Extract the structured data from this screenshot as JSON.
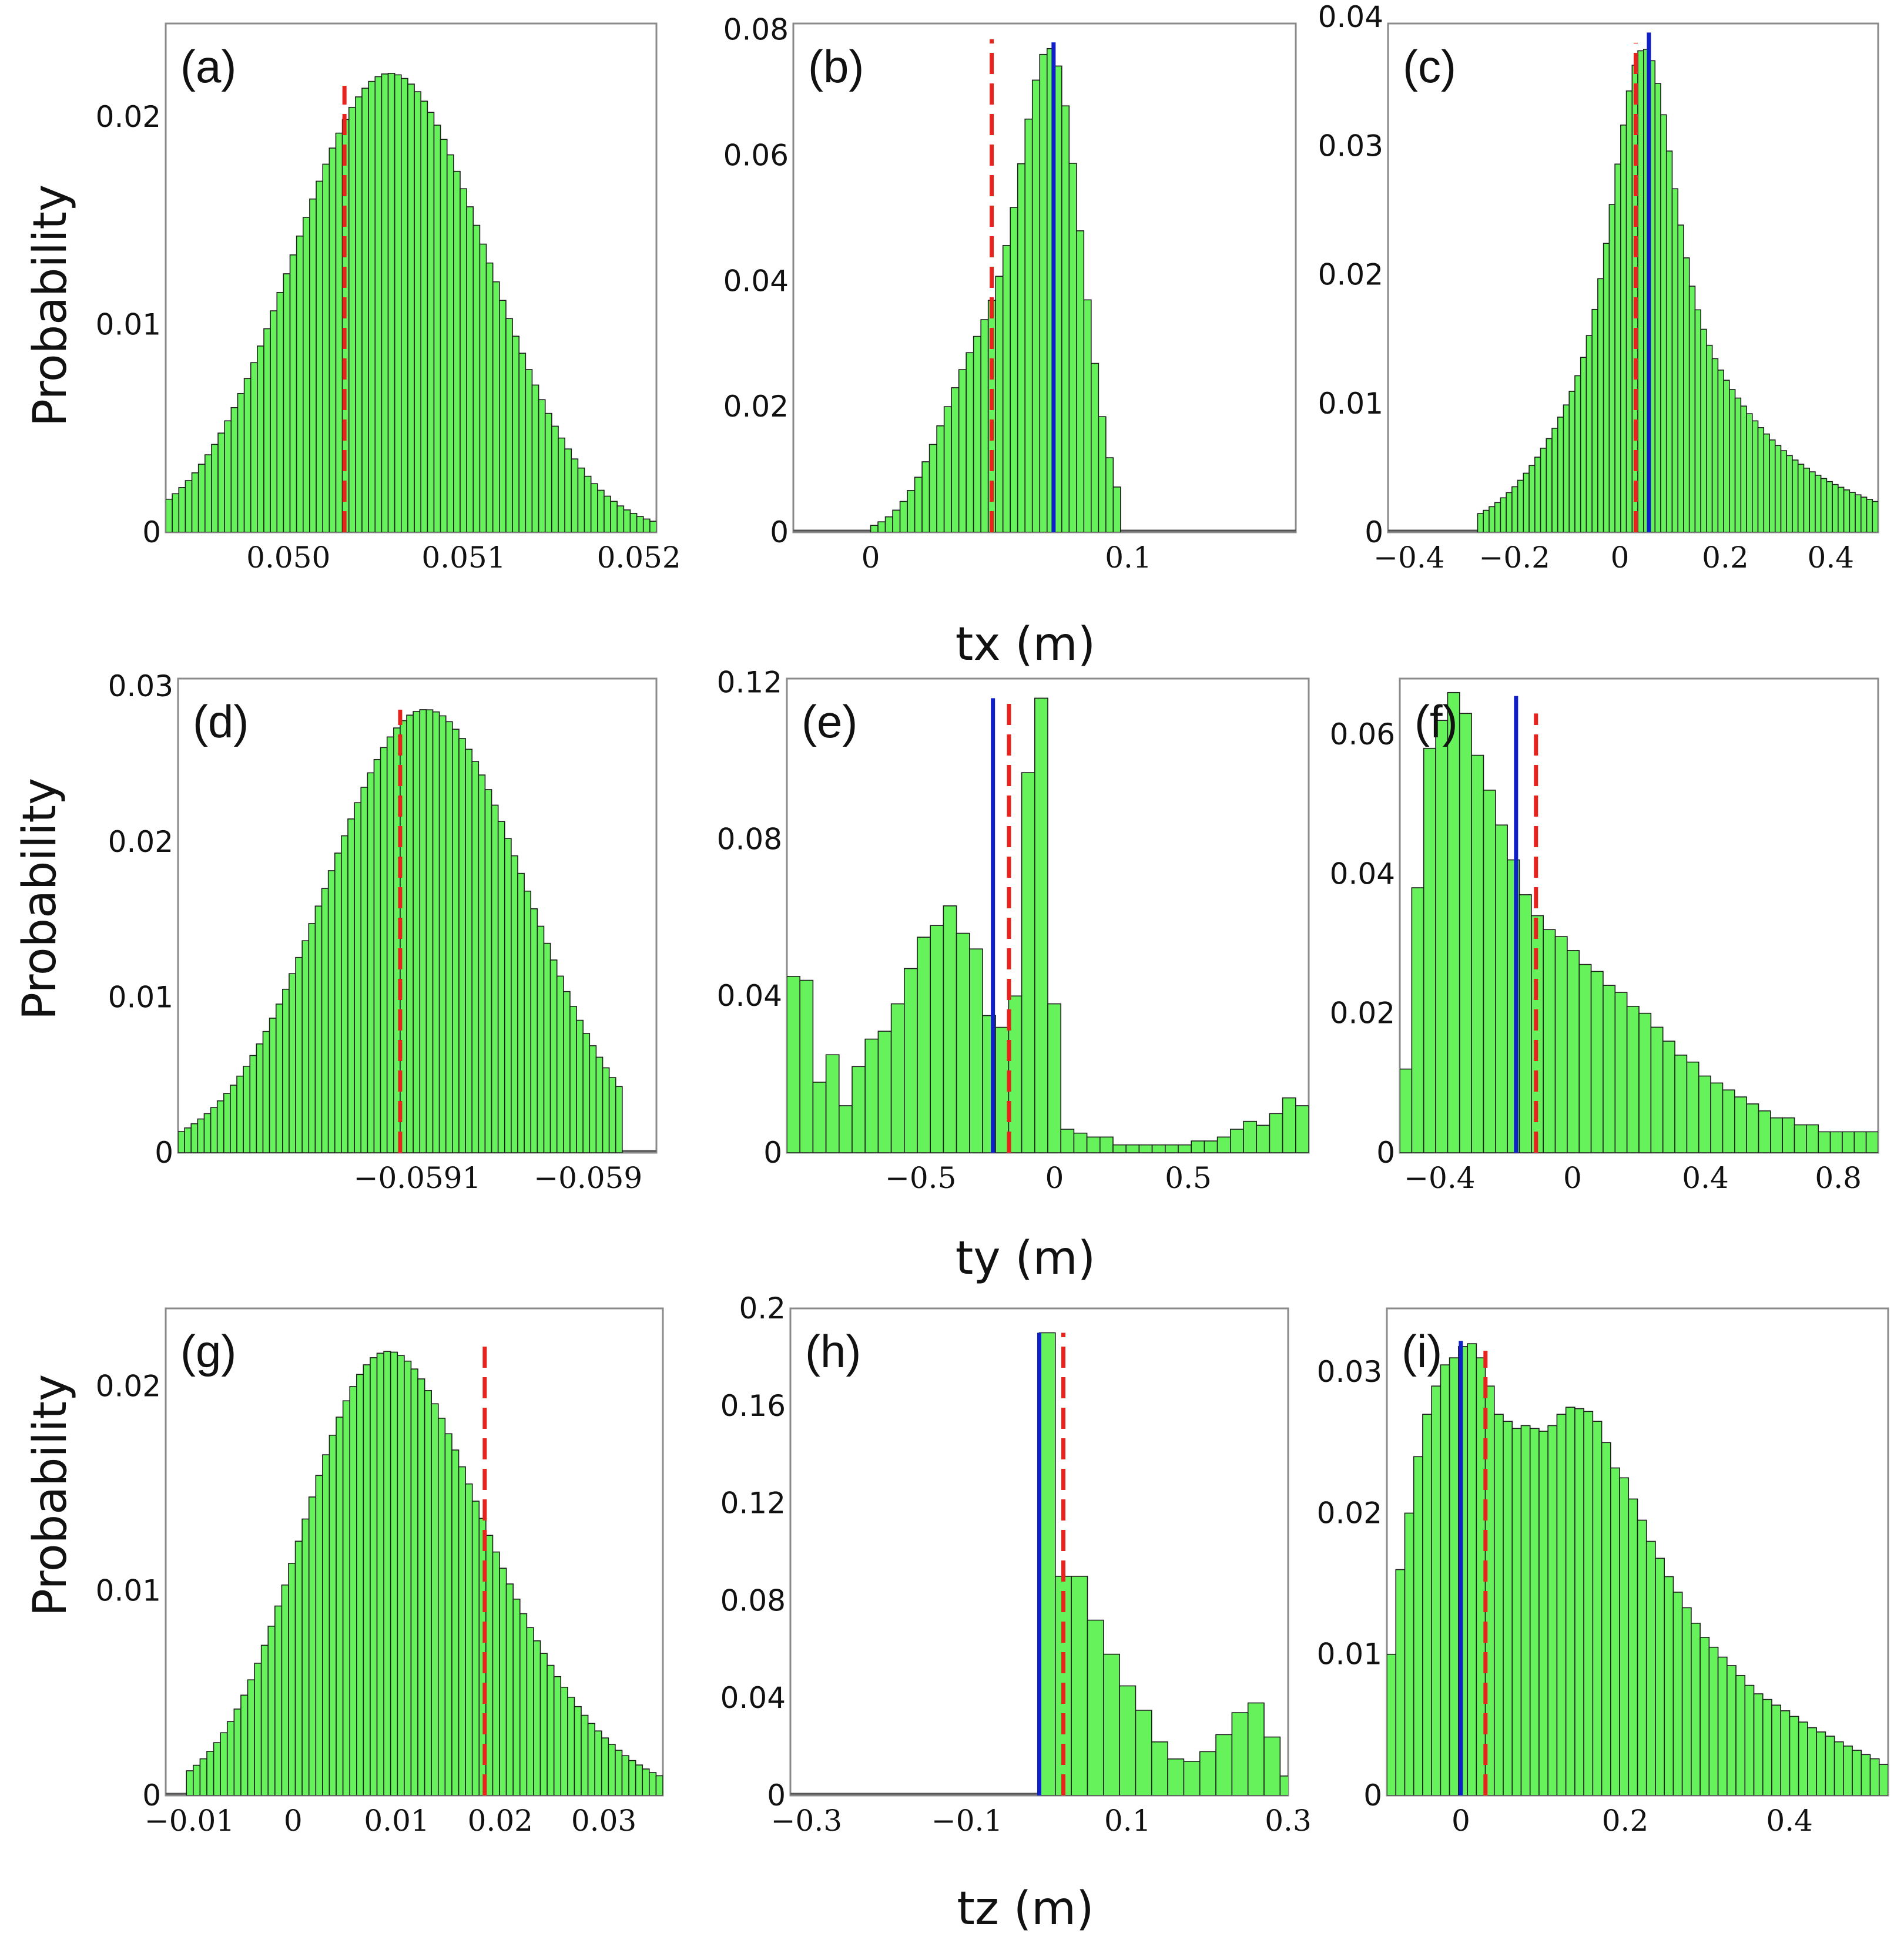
{
  "figure": {
    "y_axis_label": "Probability",
    "row_xlabels": [
      "tx (m)",
      "ty (m)",
      "tz (m)"
    ]
  },
  "colors": {
    "bar_fill": "#66f25a",
    "bar_edge": "#1d1d1d",
    "red_dashed": "#e8231d",
    "blue_solid": "#1020c8"
  },
  "chart_data": [
    {
      "id": "a",
      "type": "bar",
      "label": "(a)",
      "variable": "tx",
      "xlim": [
        0.0493,
        0.0521
      ],
      "ylim": [
        0,
        0.0245
      ],
      "xticks": [
        0.05,
        0.051,
        0.052
      ],
      "xtick_labels": [
        "0.050",
        "0.051",
        "0.052"
      ],
      "yticks": [
        0,
        0.01,
        0.02
      ],
      "ytick_labels": [
        "0",
        "0.01",
        "0.02"
      ],
      "bins": 75,
      "shape": [
        {
          "components": [
            {
              "mu": 0.05058,
              "sigma": 0.00055,
              "w": 1
            }
          ],
          "scale": 0.0221,
          "floor": 0.0005
        }
      ],
      "red_dashed_x": 0.05032,
      "red_top": 0.0215,
      "blue_solid_x": null
    },
    {
      "id": "b",
      "type": "bar",
      "label": "(b)",
      "variable": "tx",
      "xlim": [
        -0.03,
        0.165
      ],
      "ylim": [
        0,
        0.081
      ],
      "xticks": [
        0,
        0.1
      ],
      "xtick_labels": [
        "0",
        "0.1"
      ],
      "yticks": [
        0,
        0.02,
        0.04,
        0.06,
        0.08
      ],
      "ytick_labels": [
        "0",
        "0.02",
        "0.04",
        "0.06",
        "0.08"
      ],
      "bins": 34,
      "support": [
        0.0,
        0.097
      ],
      "shape": [
        {
          "components": [
            {
              "mu": 0.071,
              "sigma": 0.0115,
              "w": 0.8
            },
            {
              "mu": 0.045,
              "sigma": 0.017,
              "w": 0.35
            }
          ],
          "scale": 0.077,
          "floor": 0.0
        }
      ],
      "red_dashed_x": 0.047,
      "red_top": 0.0785,
      "blue_solid_x": 0.071,
      "blue_top": 0.078
    },
    {
      "id": "c",
      "type": "bar",
      "label": "(c)",
      "variable": "tx",
      "xlim": [
        -0.44,
        0.49
      ],
      "ylim": [
        0,
        0.0395
      ],
      "xticks": [
        -0.4,
        -0.2,
        0,
        0.2,
        0.4
      ],
      "xtick_labels": [
        "−0.4",
        "−0.2",
        "0",
        "0.2",
        "0.4"
      ],
      "yticks": [
        0,
        0.01,
        0.02,
        0.03,
        0.04
      ],
      "ytick_labels": [
        "0",
        "0.01",
        "0.02",
        "0.03",
        "0.04"
      ],
      "bins": 70,
      "support": [
        -0.27,
        0.49
      ],
      "shape": [
        {
          "components": [
            {
              "mu": 0.045,
              "sigma": 0.05,
              "w": 0.8
            },
            {
              "mu": 0.04,
              "sigma": 0.13,
              "w": 0.55
            },
            {
              "mu": 0.2,
              "sigma": 0.22,
              "w": 0.22
            }
          ],
          "scale": 0.0375,
          "floor": 0.0
        }
      ],
      "red_dashed_x": 0.03,
      "red_top": 0.038,
      "blue_solid_x": 0.055,
      "blue_top": 0.0388
    },
    {
      "id": "d",
      "type": "bar",
      "label": "(d)",
      "variable": "ty",
      "xlim": [
        -0.05924,
        -0.05896
      ],
      "ylim": [
        0,
        0.0305
      ],
      "xticks": [
        -0.0591,
        -0.059
      ],
      "xtick_labels": [
        "−0.0591",
        "−0.059"
      ],
      "yticks": [
        0,
        0.01,
        0.02,
        0.03
      ],
      "ytick_labels": [
        "0",
        "0.01",
        "0.02",
        "0.03"
      ],
      "bins": 68,
      "support": [
        -0.05924,
        -0.05898
      ],
      "shape": [
        {
          "components": [
            {
              "mu": -0.059095,
              "sigma": 5.8e-05,
              "w": 1
            }
          ],
          "scale": 0.0285,
          "floor": 0.0005
        }
      ],
      "red_dashed_x": -0.05911,
      "red_top": 0.0285,
      "blue_solid_x": null
    },
    {
      "id": "e",
      "type": "bar",
      "label": "(e)",
      "variable": "ty",
      "xlim": [
        -1.0,
        0.95
      ],
      "ylim": [
        0,
        0.121
      ],
      "xticks": [
        -0.5,
        0,
        0.5
      ],
      "xtick_labels": [
        "−0.5",
        "0",
        "0.5"
      ],
      "yticks": [
        0,
        0.04,
        0.08,
        0.12
      ],
      "ytick_labels": [
        "0",
        "0.04",
        "0.08",
        "0.12"
      ],
      "bin_values": [
        0.045,
        0.044,
        0.018,
        0.025,
        0.012,
        0.022,
        0.029,
        0.031,
        0.038,
        0.047,
        0.055,
        0.058,
        0.063,
        0.056,
        0.052,
        0.035,
        0.032,
        0.04,
        0.097,
        0.116,
        0.038,
        0.006,
        0.005,
        0.004,
        0.004,
        0.002,
        0.002,
        0.002,
        0.002,
        0.002,
        0.002,
        0.003,
        0.003,
        0.004,
        0.006,
        0.008,
        0.007,
        0.01,
        0.014,
        0.012
      ],
      "red_dashed_x": -0.17,
      "red_top": 0.115,
      "blue_solid_x": -0.23,
      "blue_top": 0.116
    },
    {
      "id": "f",
      "type": "bar",
      "label": "(f)",
      "variable": "ty",
      "xlim": [
        -0.52,
        0.92
      ],
      "ylim": [
        0,
        0.068
      ],
      "xticks": [
        -0.4,
        0,
        0.4,
        0.8
      ],
      "xtick_labels": [
        "−0.4",
        "0",
        "0.4",
        "0.8"
      ],
      "yticks": [
        0,
        0.02,
        0.04,
        0.06
      ],
      "ytick_labels": [
        "0",
        "0.02",
        "0.04",
        "0.06"
      ],
      "bin_values": [
        0.012,
        0.038,
        0.058,
        0.062,
        0.066,
        0.063,
        0.057,
        0.052,
        0.047,
        0.042,
        0.037,
        0.034,
        0.032,
        0.031,
        0.029,
        0.027,
        0.026,
        0.024,
        0.023,
        0.021,
        0.02,
        0.018,
        0.016,
        0.014,
        0.013,
        0.011,
        0.01,
        0.009,
        0.008,
        0.007,
        0.006,
        0.005,
        0.005,
        0.004,
        0.004,
        0.003,
        0.003,
        0.003,
        0.003,
        0.003
      ],
      "red_dashed_x": -0.11,
      "red_top": 0.063,
      "blue_solid_x": -0.17,
      "blue_top": 0.0655
    },
    {
      "id": "g",
      "type": "bar",
      "label": "(g)",
      "variable": "tz",
      "xlim": [
        -0.0123,
        0.0357
      ],
      "ylim": [
        0,
        0.0238
      ],
      "xticks": [
        -0.01,
        0,
        0.01,
        0.02,
        0.03
      ],
      "xtick_labels": [
        "−0.01",
        "0",
        "0.01",
        "0.02",
        "0.03"
      ],
      "yticks": [
        0,
        0.01,
        0.02
      ],
      "ytick_labels": [
        "0",
        "0.01",
        "0.02"
      ],
      "bins": 70,
      "support": [
        -0.0103,
        0.0357
      ],
      "shape": [
        {
          "components": [
            {
              "mu": 0.0075,
              "sigma": 0.0075,
              "w": 1
            },
            {
              "mu": 0.017,
              "sigma": 0.009,
              "w": 0.45
            }
          ],
          "scale": 0.0217,
          "floor": 0.0
        }
      ],
      "red_dashed_x": 0.0185,
      "red_top": 0.0222,
      "blue_solid_x": null
    },
    {
      "id": "h",
      "type": "bar",
      "label": "(h)",
      "variable": "tz",
      "xlim": [
        -0.32,
        0.3
      ],
      "ylim": [
        0,
        0.2
      ],
      "xticks": [
        -0.3,
        -0.1,
        0.1,
        0.3
      ],
      "xtick_labels": [
        "−0.3",
        "−0.1",
        "0.1",
        "0.3"
      ],
      "yticks": [
        0,
        0.04,
        0.08,
        0.12,
        0.16,
        0.2
      ],
      "ytick_labels": [
        "0",
        "0.04",
        "0.08",
        "0.12",
        "0.16",
        "0.2"
      ],
      "bin_start": -0.01,
      "bin_width": 0.02,
      "bin_values": [
        0.19,
        0.09,
        0.09,
        0.072,
        0.058,
        0.045,
        0.035,
        0.022,
        0.015,
        0.014,
        0.018,
        0.025,
        0.034,
        0.038,
        0.024,
        0.008
      ],
      "red_dashed_x": 0.02,
      "red_top": 0.19,
      "blue_solid_x": -0.01,
      "blue_top": 0.19
    },
    {
      "id": "i",
      "type": "bar",
      "label": "(i)",
      "variable": "tz",
      "xlim": [
        -0.09,
        0.52
      ],
      "ylim": [
        0,
        0.0345
      ],
      "xticks": [
        0,
        0.2,
        0.4
      ],
      "xtick_labels": [
        "0",
        "0.2",
        "0.4"
      ],
      "yticks": [
        0,
        0.01,
        0.02,
        0.03
      ],
      "ytick_labels": [
        "0",
        "0.01",
        "0.02",
        "0.03"
      ],
      "bin_values": [
        0.01,
        0.016,
        0.02,
        0.024,
        0.027,
        0.029,
        0.0305,
        0.031,
        0.0318,
        0.032,
        0.031,
        0.029,
        0.027,
        0.0265,
        0.026,
        0.0262,
        0.026,
        0.0258,
        0.0262,
        0.027,
        0.0275,
        0.0274,
        0.0272,
        0.0265,
        0.025,
        0.0232,
        0.0225,
        0.021,
        0.0195,
        0.018,
        0.0168,
        0.0155,
        0.0144,
        0.0133,
        0.0122,
        0.0112,
        0.0105,
        0.0098,
        0.0092,
        0.0085,
        0.0078,
        0.0072,
        0.0068,
        0.0064,
        0.006,
        0.0056,
        0.0052,
        0.0048,
        0.0045,
        0.0042,
        0.0038,
        0.0035,
        0.0032,
        0.0029,
        0.0026,
        0.0022
      ],
      "red_dashed_x": 0.03,
      "red_top": 0.0315,
      "blue_solid_x": 0.0,
      "blue_top": 0.0322
    }
  ]
}
